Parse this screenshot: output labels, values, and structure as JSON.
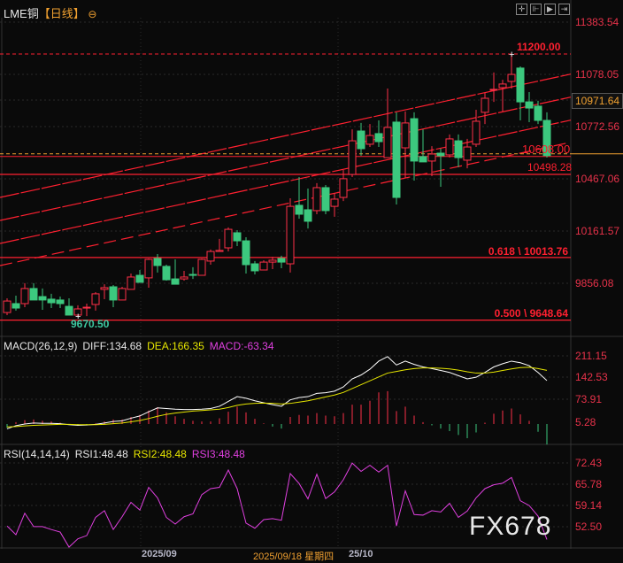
{
  "header": {
    "symbol": "LME铜",
    "period": "【日线】",
    "zoom_icon": "circle-minus-icon"
  },
  "toolbar": {
    "icons": [
      "crosshair-icon",
      "range-left-icon",
      "play-right-icon",
      "jump-end-icon"
    ]
  },
  "colors": {
    "up": "#ff3048",
    "down": "#3cc87e",
    "diff": "#ffffff",
    "dea": "#e6e600",
    "rsi": "#e040e0",
    "fib": "#ff2030",
    "current": "#f0a030"
  },
  "price_axis": {
    "labels": [
      "11383.54",
      "11078.05",
      "10971.64",
      "10772.56",
      "10467.06",
      "10161.57",
      "9856.08"
    ],
    "current_value": "10971.64"
  },
  "annotations": {
    "high_label": "11200.00",
    "low_label": "9670.50",
    "last_close_label": "10608.00",
    "level_label": "10498.28",
    "fib_618": "0.618 \\ 10013.76",
    "fib_500": "0.500 \\ 9648.64"
  },
  "candles": [
    [
      9693,
      9776,
      9678,
      9760
    ],
    [
      9745,
      9791,
      9704,
      9719
    ],
    [
      9745,
      9864,
      9724,
      9833
    ],
    [
      9833,
      9864,
      9766,
      9766
    ],
    [
      9786,
      9833,
      9709,
      9766
    ],
    [
      9771,
      9802,
      9719,
      9750
    ],
    [
      9766,
      9786,
      9719,
      9745
    ],
    [
      9729,
      9776,
      9678,
      9678
    ],
    [
      9678,
      9735,
      9670.5,
      9714
    ],
    [
      9719,
      9745,
      9672,
      9724
    ],
    [
      9740,
      9812,
      9704,
      9802
    ],
    [
      9828,
      9858,
      9771,
      9838
    ],
    [
      9843,
      9853,
      9724,
      9766
    ],
    [
      9766,
      9843,
      9766,
      9833
    ],
    [
      9828,
      9920,
      9828,
      9900
    ],
    [
      9910,
      9941,
      9869,
      9869
    ],
    [
      9895,
      10008,
      9838,
      10003
    ],
    [
      10008,
      10034,
      9926,
      9967
    ],
    [
      9962,
      9972,
      9879,
      9884
    ],
    [
      9889,
      10003,
      9858,
      9858
    ],
    [
      9889,
      9936,
      9879,
      9900
    ],
    [
      9915,
      9957,
      9889,
      9910
    ],
    [
      9910,
      10008,
      9910,
      10003
    ],
    [
      9993,
      10060,
      9972,
      10049
    ],
    [
      10049,
      10122,
      10049,
      10055
    ],
    [
      10070,
      10189,
      10049,
      10178
    ],
    [
      10158,
      10173,
      10080,
      10111
    ],
    [
      10111,
      10132,
      9920,
      9972
    ],
    [
      9977,
      9993,
      9915,
      9936
    ],
    [
      9941,
      9998,
      9941,
      9987
    ],
    [
      9987,
      10018,
      9946,
      9998
    ],
    [
      10008,
      10024,
      9951,
      9987
    ],
    [
      9977,
      10359,
      9926,
      10312
    ],
    [
      10318,
      10483,
      10240,
      10266
    ],
    [
      10292,
      10416,
      10183,
      10225
    ],
    [
      10287,
      10447,
      10266,
      10421
    ],
    [
      10421,
      10436,
      10266,
      10287
    ],
    [
      10312,
      10390,
      10251,
      10354
    ],
    [
      10364,
      10524,
      10343,
      10473
    ],
    [
      10498,
      10761,
      10483,
      10694
    ],
    [
      10751,
      10798,
      10607,
      10648
    ],
    [
      10674,
      10792,
      10658,
      10725
    ],
    [
      10736,
      10813,
      10658,
      10689
    ],
    [
      10596,
      10999,
      10596,
      10772
    ],
    [
      10803,
      10860,
      10323,
      10364
    ],
    [
      10653,
      10865,
      10478,
      10798
    ],
    [
      10823,
      10860,
      10462,
      10576
    ],
    [
      10602,
      10761,
      10571,
      10571
    ],
    [
      10576,
      10663,
      10488,
      10617
    ],
    [
      10622,
      10648,
      10426,
      10607
    ],
    [
      10612,
      10731,
      10596,
      10705
    ],
    [
      10694,
      10731,
      10540,
      10596
    ],
    [
      10581,
      10705,
      10534,
      10658
    ],
    [
      10674,
      10875,
      10658,
      10808
    ],
    [
      10860,
      10973,
      10792,
      10942
    ],
    [
      10989,
      11092,
      10921,
      10994
    ],
    [
      11004,
      11050,
      10865,
      11025
    ],
    [
      11040,
      11200,
      10999,
      11081
    ],
    [
      11118,
      11128,
      10813,
      10921
    ],
    [
      10921,
      10978,
      10803,
      10885
    ],
    [
      10896,
      10927,
      10792,
      10813
    ],
    [
      10813,
      10860,
      10596,
      10608
    ]
  ],
  "macd": {
    "title": "MACD(26,12,9)",
    "diff_label": "DIFF:134.68",
    "dea_label": "DEA:166.35",
    "macd_label": "MACD:-63.34",
    "axis_labels": [
      "211.15",
      "142.53",
      "73.91",
      "5.28"
    ],
    "diff": [
      -15,
      -5,
      0,
      3,
      2,
      2,
      1,
      -2,
      -4,
      -3,
      -1,
      3,
      8,
      10,
      18,
      25,
      38,
      50,
      48,
      46,
      45,
      45,
      46,
      48,
      55,
      70,
      85,
      80,
      72,
      66,
      60,
      55,
      75,
      82,
      85,
      95,
      97,
      102,
      115,
      140,
      152,
      170,
      195,
      209,
      183,
      195,
      185,
      177,
      172,
      166,
      160,
      150,
      140,
      145,
      160,
      177,
      187,
      195,
      190,
      181,
      160,
      134.68
    ],
    "dea": [
      -9,
      -8,
      -6,
      -4,
      -3,
      -2,
      -1,
      -1,
      -2,
      -2,
      -2,
      -1,
      1,
      3,
      7,
      11,
      17,
      24,
      30,
      34,
      37,
      40,
      42,
      44,
      46,
      51,
      58,
      62,
      64,
      65,
      64,
      62,
      64,
      68,
      72,
      78,
      84,
      90,
      98,
      110,
      122,
      134,
      146,
      158,
      163,
      168,
      172,
      174,
      174,
      173,
      171,
      167,
      162,
      158,
      158,
      161,
      166,
      171,
      175,
      176,
      172,
      166.35
    ],
    "hist": [
      -12,
      6,
      12,
      14,
      10,
      8,
      4,
      -2,
      -4,
      -2,
      2,
      8,
      14,
      14,
      22,
      28,
      42,
      52,
      36,
      24,
      16,
      10,
      8,
      8,
      18,
      38,
      54,
      36,
      16,
      2,
      -8,
      -14,
      22,
      28,
      26,
      34,
      26,
      24,
      34,
      60,
      60,
      72,
      98,
      102,
      40,
      54,
      26,
      6,
      -4,
      -14,
      -22,
      -34,
      -44,
      -26,
      4,
      32,
      42,
      48,
      30,
      10,
      -24,
      -63.34
    ]
  },
  "rsi": {
    "title": "RSI(14,14,14)",
    "rsi1_label": "RSI1:48.48",
    "rsi2_label": "RSI2:48.48",
    "rsi3_label": "RSI3:48.48",
    "axis_labels": [
      "72.43",
      "65.78",
      "59.14",
      "52.50"
    ],
    "values": [
      52.7,
      50.0,
      56.7,
      52.5,
      52.5,
      51.6,
      50.8,
      46.1,
      48.7,
      49.7,
      55.4,
      57.5,
      51.6,
      55.6,
      60.1,
      57.7,
      64.8,
      61.5,
      55.4,
      53.3,
      55.6,
      56.5,
      62.5,
      64.4,
      64.8,
      70.2,
      64.4,
      53.6,
      52.0,
      54.7,
      55.0,
      54.5,
      69.1,
      66.0,
      61.2,
      68.9,
      61.3,
      63.4,
      67.2,
      72.4,
      69.8,
      71.7,
      69.6,
      71.7,
      52.7,
      63.7,
      56.3,
      56.1,
      57.5,
      57.1,
      59.8,
      55.4,
      57.4,
      61.5,
      64.4,
      65.6,
      66.1,
      67.9,
      60.6,
      59.1,
      55.8,
      48.48
    ]
  },
  "time_axis": {
    "labels": [
      "2025/09",
      "25/10"
    ],
    "cursor_date": "2025/09/18 星期四"
  },
  "watermark": "FX678"
}
